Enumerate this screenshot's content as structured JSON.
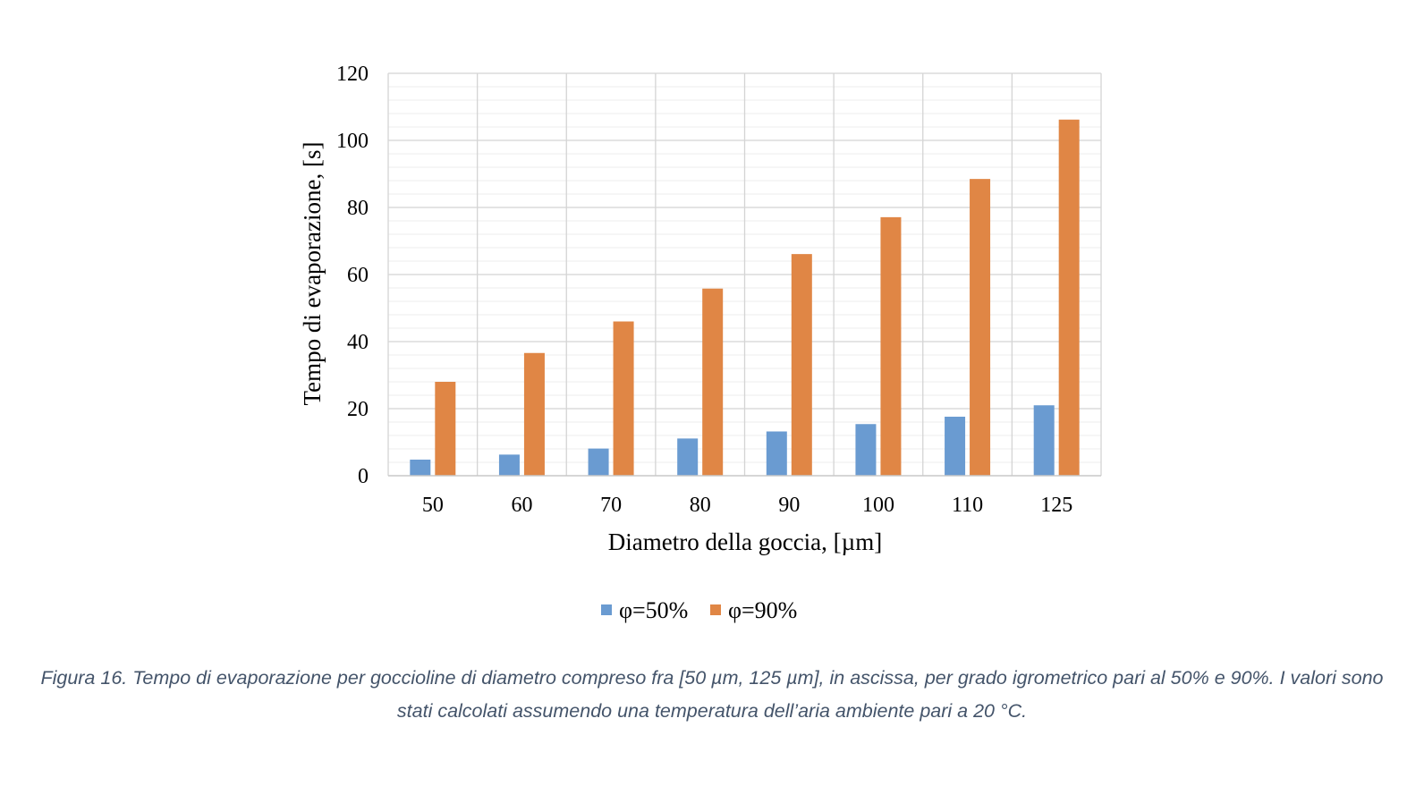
{
  "chart_data": {
    "type": "bar",
    "categories": [
      "50",
      "60",
      "70",
      "80",
      "90",
      "100",
      "110",
      "125"
    ],
    "series": [
      {
        "name": "φ=50%",
        "color": "#6a9bd1",
        "values": [
          4.8,
          6.3,
          8.1,
          11.1,
          13.2,
          15.4,
          17.6,
          21.0
        ]
      },
      {
        "name": "φ=90%",
        "color": "#e08645",
        "values": [
          28.0,
          36.6,
          46.0,
          55.8,
          66.1,
          77.1,
          88.5,
          106.2
        ]
      }
    ],
    "xlabel": "Diametro della goccia, [µm]",
    "ylabel": "Tempo di evaporazione, [s]",
    "ylim": [
      0,
      120
    ],
    "yticks": [
      0,
      20,
      40,
      60,
      80,
      100,
      120
    ],
    "minor_grid_step": 4,
    "grid": true,
    "legend_position": "bottom"
  },
  "caption": "Figura 16. Tempo di evaporazione per goccioline di diametro compreso fra [50 µm, 125 µm], in ascissa, per grado igrometrico pari al 50% e 90%. I valori sono stati calcolati assumendo una temperatura dell’aria ambiente pari a 20 °C."
}
